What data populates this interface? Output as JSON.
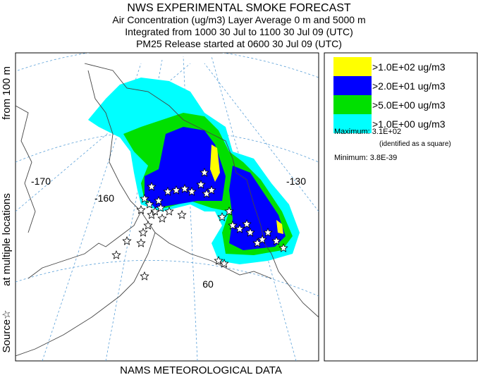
{
  "header": {
    "title": "NWS EXPERIMENTAL SMOKE FORECAST",
    "lines": [
      "Air Concentration (ug/m3) Layer Average    0 m and  5000 m",
      "Integrated from 1000 30 Jul to 1100 30 Jul 09 (UTC)",
      "PM25 Release started at 0600 30 Jul 09 (UTC)"
    ]
  },
  "side_label": {
    "source": "Source☆",
    "locations": "at multiple locations",
    "height": "from   100 m"
  },
  "footer": "NAMS METEOROLOGICAL DATA",
  "map": {
    "labels": [
      "-170",
      "-160",
      "-130",
      "60"
    ]
  },
  "legend": {
    "entries": [
      {
        "label": ">1.0E+02 ug/m3",
        "color": "#ffff00"
      },
      {
        "label": ">2.0E+01 ug/m3",
        "color": "#0000ff"
      },
      {
        "label": ">5.0E+00 ug/m3",
        "color": "#00e000"
      },
      {
        "label": ">1.0E+00 ug/m3",
        "color": "#00ffff"
      }
    ],
    "maximum": "Maximum: 3.1E+02",
    "maximum_note": "(identified as a square)",
    "minimum": "Minimum: 3.8E-39"
  }
}
